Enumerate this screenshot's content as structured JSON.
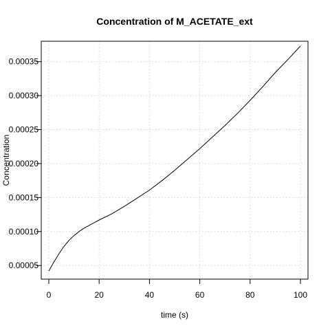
{
  "chart_data": {
    "type": "line",
    "title": "Concentration of M_ACETATE_ext",
    "xlabel": "time (s)",
    "ylabel": "Concentration",
    "xlim": [
      -3,
      103
    ],
    "ylim": [
      3e-05,
      0.00038
    ],
    "x_ticks": [
      0,
      20,
      40,
      60,
      80,
      100
    ],
    "x_tick_labels": [
      "0",
      "20",
      "40",
      "60",
      "80",
      "100"
    ],
    "y_ticks": [
      5e-05,
      0.0001,
      0.00015,
      0.0002,
      0.00025,
      0.0003,
      0.00035
    ],
    "y_tick_labels": [
      "0.00005",
      "0.00010",
      "0.00015",
      "0.00020",
      "0.00025",
      "0.00030",
      "0.00035"
    ],
    "grid": true,
    "series": [
      {
        "x": [
          0,
          2,
          4,
          6,
          8,
          10,
          12,
          14,
          16,
          18,
          20,
          25,
          30,
          35,
          40,
          45,
          50,
          55,
          60,
          65,
          70,
          75,
          80,
          85,
          90,
          95,
          100
        ],
        "y": [
          4.2e-05,
          5.5e-05,
          6.7e-05,
          7.8e-05,
          8.7e-05,
          9.4e-05,
          0.0001,
          0.000105,
          0.000109,
          0.000113,
          0.000117,
          0.000126,
          0.000137,
          0.000149,
          0.000161,
          0.000175,
          0.00019,
          0.000206,
          0.000222,
          0.000239,
          0.000256,
          0.000274,
          0.000293,
          0.000313,
          0.000334,
          0.000353,
          0.000373
        ]
      }
    ]
  }
}
